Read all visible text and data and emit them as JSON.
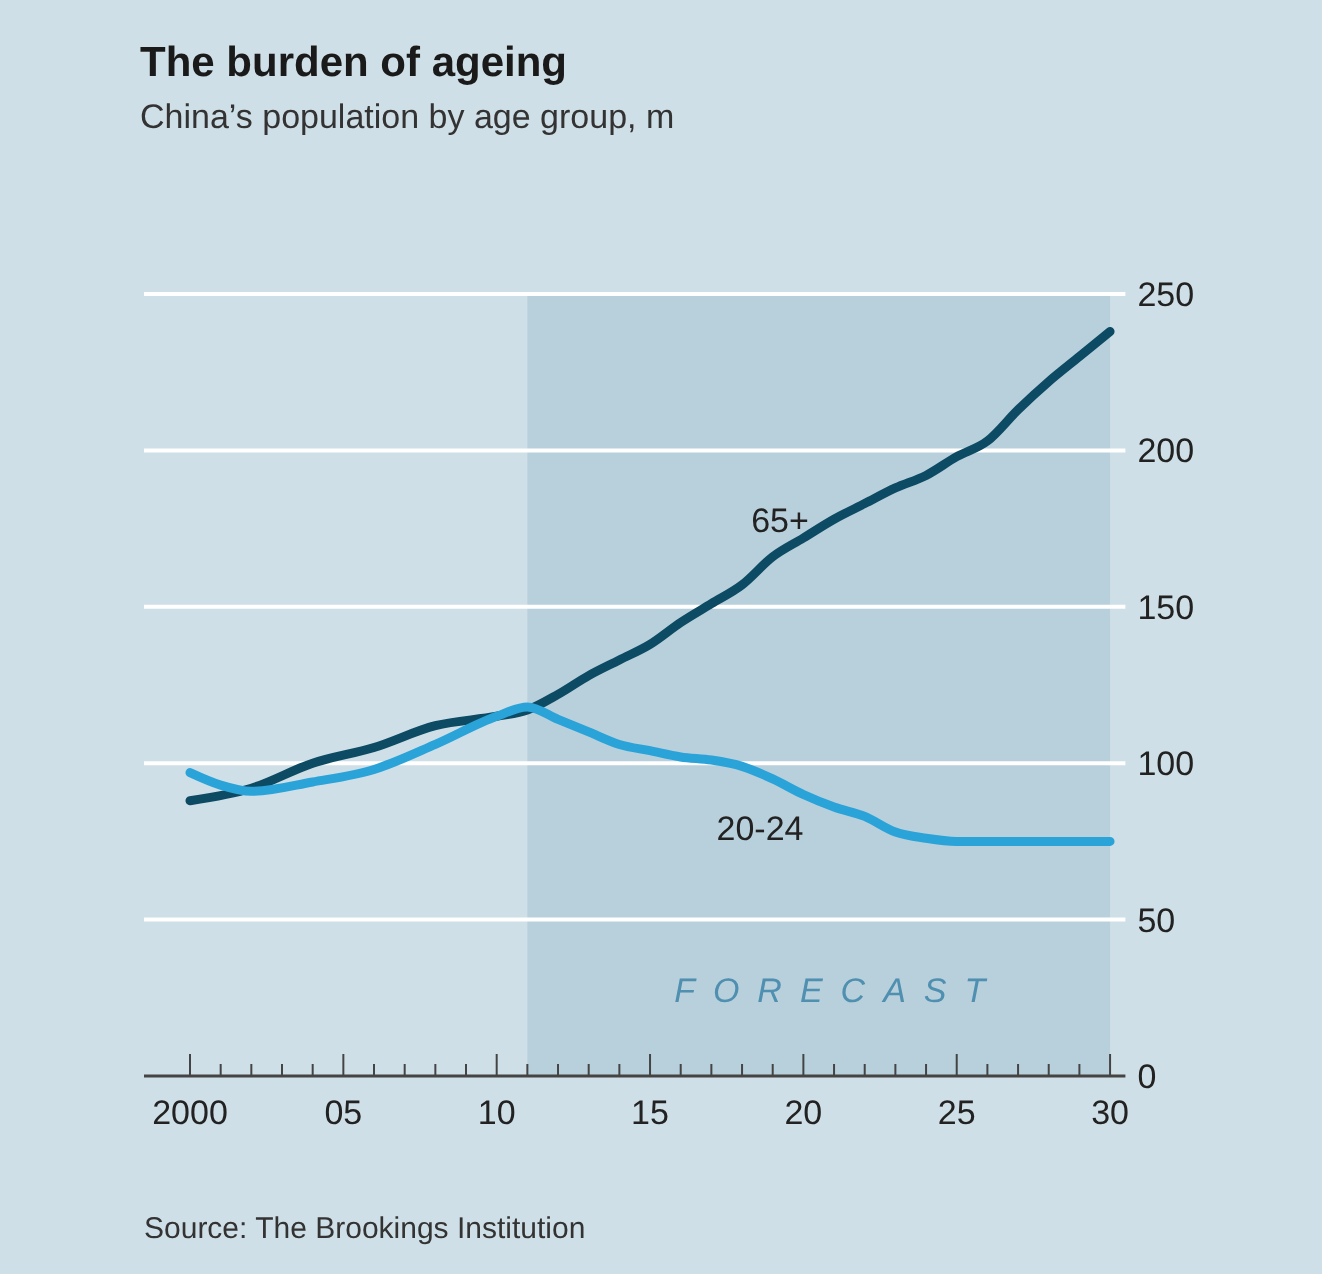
{
  "chart_data": {
    "type": "line",
    "title": "The burden of ageing",
    "subtitle": "China’s population by age group, m",
    "annotations": [
      "Source: The Brookings Institution"
    ],
    "x": [
      2000,
      2002,
      2004,
      2006,
      2008,
      2010,
      2011,
      2012,
      2013,
      2014,
      2015,
      2016,
      2017,
      2018,
      2019,
      2020,
      2021,
      2022,
      2023,
      2024,
      2025,
      2026,
      2027,
      2028,
      2029,
      2030
    ],
    "series": [
      {
        "name": "65+",
        "color": "#0d4a63",
        "values": [
          88,
          92,
          100,
          105,
          112,
          115,
          117,
          122,
          128,
          133,
          138,
          145,
          151,
          157,
          166,
          172,
          178,
          183,
          188,
          192,
          198,
          203,
          213,
          222,
          230,
          238
        ]
      },
      {
        "name": "20-24",
        "color": "#2aa3d8",
        "x": [
          2000,
          2001,
          2002,
          2004,
          2006,
          2008,
          2010,
          2011,
          2012,
          2013,
          2014,
          2015,
          2016,
          2017,
          2018,
          2019,
          2020,
          2021,
          2022,
          2023,
          2024,
          2025,
          2026,
          2027,
          2028,
          2029,
          2030
        ],
        "values": [
          97,
          93,
          91,
          94,
          98,
          106,
          115,
          118,
          114,
          110,
          106,
          104,
          102,
          101,
          99,
          95,
          90,
          86,
          83,
          78,
          76,
          75,
          75,
          75,
          75,
          75,
          75
        ]
      }
    ],
    "xlim": [
      1998.5,
      2030.5
    ],
    "xticks": [
      {
        "value": 2000,
        "label": "2000"
      },
      {
        "value": 2001,
        "label": null
      },
      {
        "value": 2002,
        "label": null
      },
      {
        "value": 2003,
        "label": null
      },
      {
        "value": 2004,
        "label": null
      },
      {
        "value": 2005,
        "label": "05"
      },
      {
        "value": 2006,
        "label": null
      },
      {
        "value": 2007,
        "label": null
      },
      {
        "value": 2008,
        "label": null
      },
      {
        "value": 2009,
        "label": null
      },
      {
        "value": 2010,
        "label": "10"
      },
      {
        "value": 2011,
        "label": null
      },
      {
        "value": 2012,
        "label": null
      },
      {
        "value": 2013,
        "label": null
      },
      {
        "value": 2014,
        "label": null
      },
      {
        "value": 2015,
        "label": "15"
      },
      {
        "value": 2016,
        "label": null
      },
      {
        "value": 2017,
        "label": null
      },
      {
        "value": 2018,
        "label": null
      },
      {
        "value": 2019,
        "label": null
      },
      {
        "value": 2020,
        "label": "20"
      },
      {
        "value": 2021,
        "label": null
      },
      {
        "value": 2022,
        "label": null
      },
      {
        "value": 2023,
        "label": null
      },
      {
        "value": 2024,
        "label": null
      },
      {
        "value": 2025,
        "label": "25"
      },
      {
        "value": 2026,
        "label": null
      },
      {
        "value": 2027,
        "label": null
      },
      {
        "value": 2028,
        "label": null
      },
      {
        "value": 2029,
        "label": null
      },
      {
        "value": 2030,
        "label": "30"
      }
    ],
    "ylim": [
      0,
      250
    ],
    "yticks": [
      0,
      50,
      100,
      150,
      200,
      250
    ],
    "grid": "y",
    "bands": [
      {
        "axis": "x",
        "from": 2011,
        "to": 2030,
        "label": "FORECAST",
        "color": "#b8cfdc"
      }
    ],
    "legend": false,
    "line_style": "solid",
    "marker": "none"
  }
}
